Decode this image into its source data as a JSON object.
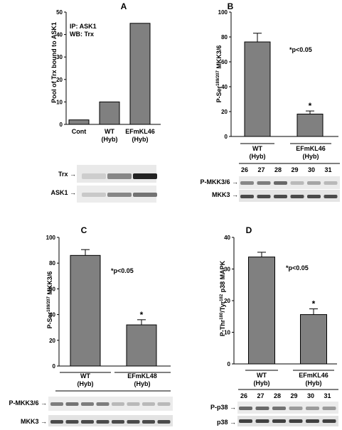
{
  "panels": {
    "A": {
      "letter": "A",
      "ylabel": "Pool of Trx bound to ASK1",
      "annotation_lines": [
        "IP: ASK1",
        "WB: Trx"
      ],
      "blots": [
        {
          "label": "Trx →",
          "lanes": 3
        },
        {
          "label": "ASK1 →",
          "lanes": 3
        }
      ]
    },
    "B": {
      "letter": "B",
      "ylabel_main": "P-Ser",
      "ylabel_sup": "189/207",
      "ylabel_tail": " MKK3/6",
      "pvalue": "*p<0.05",
      "star": "*",
      "group_labels": [
        [
          "WT",
          "(Hyb)"
        ],
        [
          "EFmKL46",
          "(Hyb)"
        ]
      ],
      "lane_numbers": [
        "26",
        "27",
        "28",
        "29",
        "30",
        "31"
      ],
      "blots": [
        {
          "label": "P-MKK3/6 →",
          "lanes": 6
        },
        {
          "label": "MKK3 →",
          "lanes": 6
        }
      ]
    },
    "C": {
      "letter": "C",
      "ylabel_main": "P-Ser",
      "ylabel_sup": "189/207",
      "ylabel_tail": " MKK3/6",
      "pvalue": "*p<0.05",
      "star": "*",
      "group_labels": [
        [
          "WT",
          "(Hyb)"
        ],
        [
          "EFmKL48",
          "(Hyb)"
        ]
      ],
      "blots": [
        {
          "label": "P-MKK3/6 →",
          "lanes": 8
        },
        {
          "label": "MKK3 →",
          "lanes": 8
        }
      ]
    },
    "D": {
      "letter": "D",
      "ylabel_main": "P-Thr",
      "ylabel_sup1": "180",
      "ylabel_mid": "/Tyr",
      "ylabel_sup2": "182",
      "ylabel_tail": " p38 MAPK",
      "pvalue": "*p<0.05",
      "star": "*",
      "group_labels": [
        [
          "WT",
          "(Hyb)"
        ],
        [
          "EFmKL46",
          "(Hyb)"
        ]
      ],
      "lane_numbers": [
        "26",
        "27",
        "28",
        "29",
        "30",
        "31"
      ],
      "blots": [
        {
          "label": "P-p38 →",
          "lanes": 6
        },
        {
          "label": "p38 →",
          "lanes": 6
        }
      ]
    }
  },
  "chart_data": [
    {
      "panel": "A",
      "type": "bar",
      "categories": [
        "Cont",
        "WT (Hyb)",
        "EFmKL46 (Hyb)"
      ],
      "values": [
        2,
        10,
        45
      ],
      "ylabel": "Pool of Trx bound to ASK1",
      "ylim": [
        0,
        50
      ],
      "yticks": [
        0,
        10,
        20,
        30,
        40,
        50
      ],
      "grid": false,
      "bar_color": "#808080"
    },
    {
      "panel": "B",
      "type": "bar",
      "categories": [
        "WT (Hyb)",
        "EFmKL46 (Hyb)"
      ],
      "values": [
        76,
        18
      ],
      "errors": [
        7,
        2.5
      ],
      "ylabel": "P-Ser189/207 MKK3/6",
      "ylim": [
        0,
        100
      ],
      "yticks": [
        0,
        20,
        40,
        60,
        80,
        100
      ],
      "grid": false,
      "bar_color": "#808080"
    },
    {
      "panel": "C",
      "type": "bar",
      "categories": [
        "WT (Hyb)",
        "EFmKL48 (Hyb)"
      ],
      "values": [
        86,
        32
      ],
      "errors": [
        4.5,
        4
      ],
      "ylabel": "P-Ser189/207 MKK3/6",
      "ylim": [
        0,
        100
      ],
      "yticks": [
        0,
        20,
        40,
        60,
        80,
        100
      ],
      "grid": false,
      "bar_color": "#808080"
    },
    {
      "panel": "D",
      "type": "bar",
      "categories": [
        "WT (Hyb)",
        "EFmKL46 (Hyb)"
      ],
      "values": [
        33.8,
        15.6
      ],
      "errors": [
        1.5,
        1.8
      ],
      "ylabel": "P-Thr180/Tyr182 p38 MAPK",
      "ylim": [
        0,
        40
      ],
      "yticks": [
        0,
        10,
        20,
        30,
        40
      ],
      "grid": false,
      "bar_color": "#808080"
    }
  ]
}
